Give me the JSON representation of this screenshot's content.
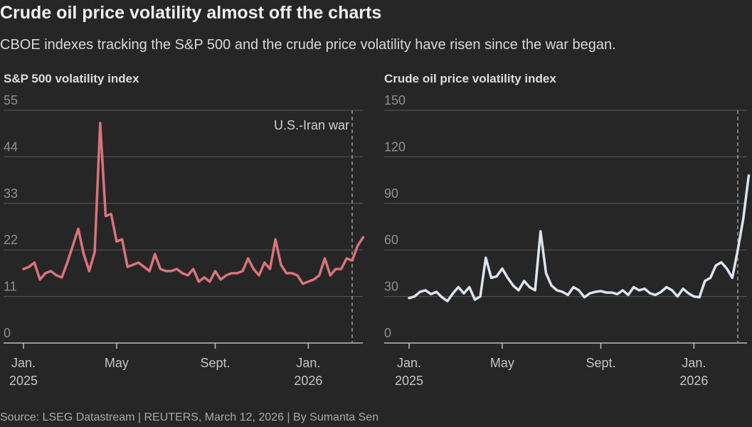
{
  "title": "Crude oil price volatility almost off the charts",
  "subtitle": "CBOE indexes tracking the S&P 500 and the crude price volatility have risen since the war began.",
  "source": "Source: LSEG Datastream | REUTERS, March 12, 2026 | By Sumanta Sen",
  "chart_data": [
    {
      "type": "line",
      "title": "S&P 500 volatility index",
      "color": "#d9747a",
      "categories": [
        "Jan. 2025",
        null,
        null,
        null,
        null,
        null,
        null,
        null,
        null,
        null,
        null,
        null,
        null,
        null,
        null,
        null,
        null,
        "May",
        null,
        null,
        null,
        null,
        null,
        null,
        null,
        null,
        null,
        null,
        null,
        null,
        null,
        null,
        null,
        null,
        null,
        "Sept.",
        null,
        null,
        null,
        null,
        null,
        null,
        null,
        null,
        null,
        null,
        null,
        null,
        null,
        null,
        null,
        null,
        "Jan. 2026",
        null,
        null,
        null,
        null,
        null,
        null,
        null,
        null,
        null,
        null
      ],
      "values": [
        17.5,
        18,
        19,
        15,
        16.5,
        17,
        16,
        15.5,
        19,
        23,
        27,
        21,
        17,
        21.5,
        52,
        30,
        30.5,
        24,
        24.5,
        18,
        18.5,
        19,
        18,
        17,
        21,
        17.5,
        17,
        17,
        17.5,
        16.5,
        16,
        17.5,
        14.5,
        15.5,
        14.5,
        17,
        15,
        16,
        16.5,
        16.5,
        17,
        20,
        17.5,
        16,
        19,
        17.5,
        24.5,
        18.5,
        16.5,
        16.5,
        16,
        14,
        14.5,
        15,
        16,
        20,
        16,
        17.5,
        17.5,
        20,
        19.5,
        23,
        25
      ],
      "ylim": [
        0,
        55
      ],
      "yticks": [
        0,
        11,
        22,
        33,
        44,
        55
      ],
      "grid": true,
      "event_line": 60,
      "event_label": "U.S.-Iran war"
    },
    {
      "type": "line",
      "title": "Crude oil price volatility index",
      "color": "#dde3f0",
      "categories": [
        "Jan. 2025",
        null,
        null,
        null,
        null,
        null,
        null,
        null,
        null,
        null,
        null,
        null,
        null,
        null,
        null,
        null,
        null,
        "May",
        null,
        null,
        null,
        null,
        null,
        null,
        null,
        null,
        null,
        null,
        null,
        null,
        null,
        null,
        null,
        null,
        null,
        "Sept.",
        null,
        null,
        null,
        null,
        null,
        null,
        null,
        null,
        null,
        null,
        null,
        null,
        null,
        null,
        null,
        null,
        "Jan. 2026",
        null,
        null,
        null,
        null,
        null,
        null,
        null,
        null,
        null,
        null
      ],
      "values": [
        29,
        30,
        33,
        34,
        31.5,
        33,
        29.5,
        27,
        32,
        36,
        32,
        36,
        28,
        30,
        55,
        42,
        43,
        48,
        42,
        37,
        34,
        40,
        36,
        34,
        72,
        45,
        37,
        34,
        33,
        31,
        36,
        34,
        29.5,
        32,
        33,
        33.5,
        32.5,
        32.5,
        31.5,
        34,
        31,
        36,
        34,
        35,
        32,
        31,
        33,
        36,
        34,
        30,
        35,
        32,
        30,
        29.5,
        40,
        42,
        50,
        52,
        48,
        42,
        60,
        80,
        108
      ],
      "ylim": [
        0,
        150
      ],
      "yticks": [
        0,
        30,
        60,
        90,
        120,
        150
      ],
      "grid": true,
      "event_line": 60
    }
  ]
}
